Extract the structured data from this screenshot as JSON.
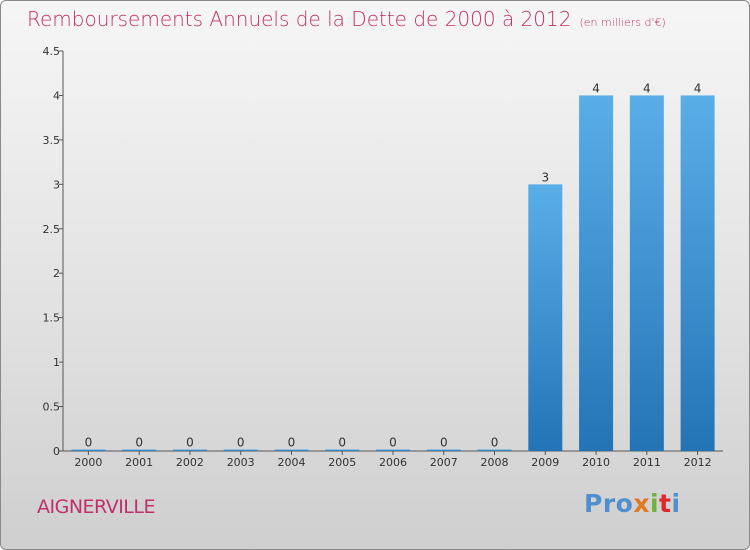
{
  "title": "Remboursements Annuels de la Dette de 2000 à 2012",
  "unit_note": "(en milliers d'€)",
  "commune": "AIGNERVILLE",
  "logo": {
    "p1": "Pro",
    "p2": "x",
    "p3": "i",
    "p4": "t",
    "p5": "i"
  },
  "colors": {
    "title": "#c0306a",
    "bar_top": "#5aaee8",
    "bar_bottom": "#2374b6"
  },
  "chart_data": {
    "type": "bar",
    "categories": [
      "2000",
      "2001",
      "2002",
      "2003",
      "2004",
      "2005",
      "2006",
      "2007",
      "2008",
      "2009",
      "2010",
      "2011",
      "2012"
    ],
    "values": [
      0,
      0,
      0,
      0,
      0,
      0,
      0,
      0,
      0,
      3,
      4,
      4,
      4
    ],
    "data_labels": [
      "0",
      "0",
      "0",
      "0",
      "0",
      "0",
      "0",
      "0",
      "0",
      "3",
      "4",
      "4",
      "4"
    ],
    "yticks": [
      0,
      0.5,
      1,
      1.5,
      2,
      2.5,
      3,
      3.5,
      4,
      4.5
    ],
    "ytick_labels": [
      "0",
      "0.5",
      "1",
      "1.5",
      "2",
      "2.5",
      "3",
      "3.5",
      "4",
      "4.5"
    ],
    "ylim": [
      0,
      4.5
    ],
    "grid": false,
    "legend": "none"
  }
}
